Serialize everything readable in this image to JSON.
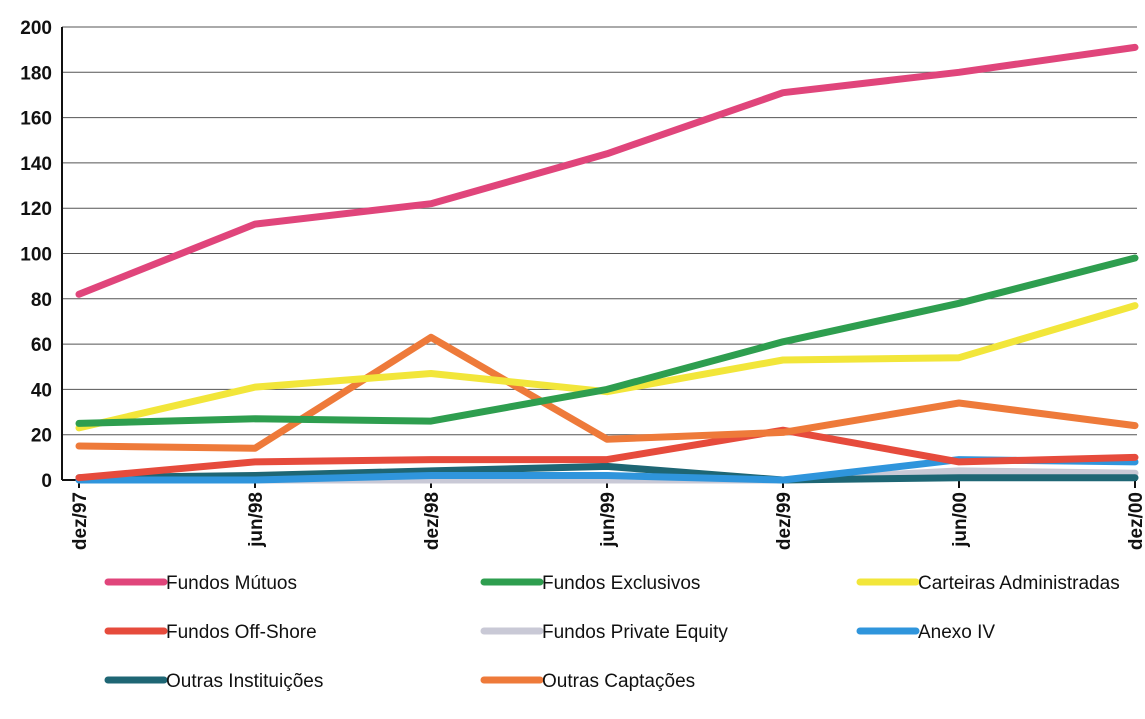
{
  "chart_data": {
    "type": "line",
    "categories": [
      "dez/97",
      "jun/98",
      "dez/98",
      "jun/99",
      "dez/99",
      "jun/00",
      "dez/00"
    ],
    "ylim": [
      0,
      200
    ],
    "yticks": [
      0,
      20,
      40,
      60,
      80,
      100,
      120,
      140,
      160,
      180,
      200
    ],
    "grid": true,
    "legend_position": "bottom",
    "series": [
      {
        "name": "Fundos Mútuos",
        "color": "#e0457b",
        "values": [
          82,
          113,
          122,
          144,
          171,
          180,
          191
        ]
      },
      {
        "name": "Fundos Exclusivos",
        "color": "#2e9e4f",
        "values": [
          25,
          27,
          26,
          40,
          61,
          78,
          98
        ]
      },
      {
        "name": "Carteiras Administradas",
        "color": "#f2e63a",
        "values": [
          23,
          41,
          47,
          39,
          53,
          54,
          77
        ]
      },
      {
        "name": "Fundos Off-Shore",
        "color": "#e64b3c",
        "values": [
          1,
          8,
          9,
          9,
          22,
          8,
          10
        ]
      },
      {
        "name": "Fundos Private Equity",
        "color": "#c9c9d6",
        "values": [
          0,
          0,
          0,
          0,
          0,
          4,
          3
        ]
      },
      {
        "name": "Anexo IV",
        "color": "#2f95dc",
        "values": [
          0,
          0,
          2,
          2,
          0,
          9,
          8
        ]
      },
      {
        "name": "Outras Instituições",
        "color": "#1e6674",
        "values": [
          1,
          2,
          4,
          6,
          0,
          1,
          1
        ]
      },
      {
        "name": "Outras Captações",
        "color": "#ee7a3a",
        "values": [
          15,
          14,
          63,
          18,
          21,
          34,
          24
        ]
      }
    ]
  }
}
